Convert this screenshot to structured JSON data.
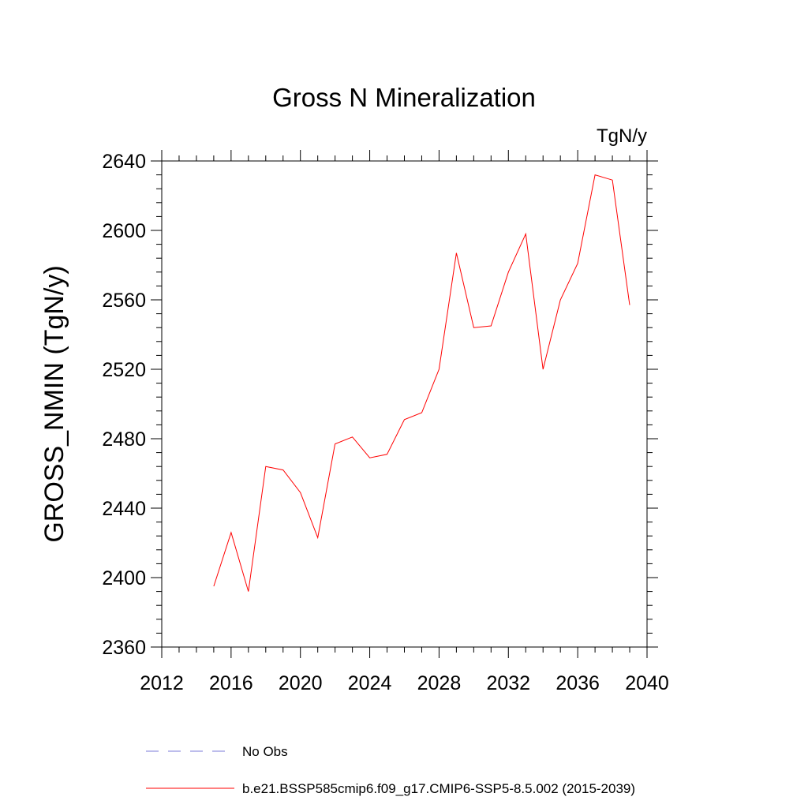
{
  "chart_data": {
    "type": "line",
    "title": "Gross N Mineralization",
    "units_label": "TgN/y",
    "ylabel": "GROSS_NMIN  (TgN/y)",
    "xlabel": "",
    "xlim": [
      2012,
      2040
    ],
    "ylim": [
      2360,
      2640
    ],
    "x_ticks": [
      2012,
      2016,
      2020,
      2024,
      2028,
      2032,
      2036,
      2040
    ],
    "y_ticks": [
      2360,
      2400,
      2440,
      2480,
      2520,
      2560,
      2600,
      2640
    ],
    "x_minor_step": 1,
    "y_minor_step": 8,
    "grid": false,
    "legend_position": "bottom",
    "series": [
      {
        "name": "b.e21.BSSP585cmip6.f09_g17.CMIP6-SSP5-8.5.002 (2015-2039)",
        "color": "#ff0000",
        "dash": "solid",
        "x": [
          2015,
          2016,
          2017,
          2018,
          2019,
          2020,
          2021,
          2022,
          2023,
          2024,
          2025,
          2026,
          2027,
          2028,
          2029,
          2030,
          2031,
          2032,
          2033,
          2034,
          2035,
          2036,
          2037,
          2038,
          2039
        ],
        "values": [
          2395,
          2426,
          2392,
          2464,
          2462,
          2449,
          2423,
          2477,
          2481,
          2469,
          2471,
          2491,
          2495,
          2520,
          2587,
          2544,
          2545,
          2576,
          2598,
          2520,
          2560,
          2581,
          2632,
          2629,
          2557
        ]
      }
    ],
    "legend": [
      {
        "label": "No Obs",
        "color": "#7b7bd8",
        "dash": "dashed"
      },
      {
        "label": "b.e21.BSSP585cmip6.f09_g17.CMIP6-SSP5-8.5.002 (2015-2039)",
        "color": "#ff0000",
        "dash": "solid"
      }
    ]
  }
}
